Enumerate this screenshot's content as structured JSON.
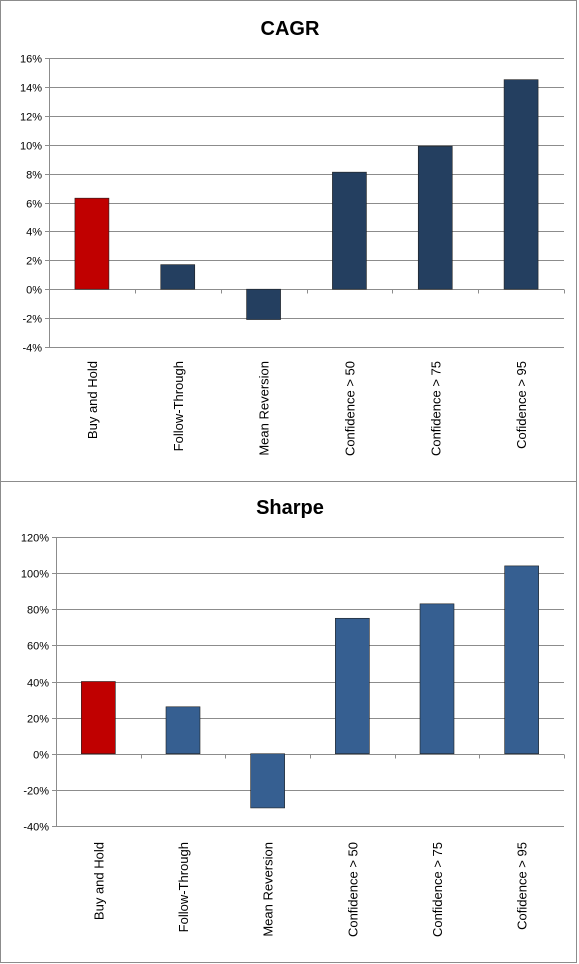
{
  "chart_data": [
    {
      "type": "bar",
      "title": "CAGR",
      "categories": [
        "Buy and Hold",
        "Follow-Through",
        "Mean Reversion",
        "Confidence > 50",
        "Confidence > 75",
        "Cofidence > 95"
      ],
      "values": [
        6.3,
        1.7,
        -2.1,
        8.1,
        9.9,
        14.5
      ],
      "ylim": [
        -4,
        16
      ],
      "yticks": [
        -4,
        -2,
        0,
        2,
        4,
        6,
        8,
        10,
        12,
        14,
        16
      ],
      "ytick_labels": [
        "-4%",
        "-2%",
        "0%",
        "2%",
        "4%",
        "6%",
        "8%",
        "10%",
        "12%",
        "14%",
        "16%"
      ],
      "grid": true,
      "colors": [
        "#c00000",
        "#243f60",
        "#243f60",
        "#243f60",
        "#243f60",
        "#243f60"
      ]
    },
    {
      "type": "bar",
      "title": "Sharpe",
      "categories": [
        "Buy and Hold",
        "Follow-Through",
        "Mean Reversion",
        "Confidence > 50",
        "Confidence > 75",
        "Cofidence > 95"
      ],
      "values": [
        40,
        26,
        -30,
        75,
        83,
        104
      ],
      "ylim": [
        -40,
        120
      ],
      "yticks": [
        -40,
        -20,
        0,
        20,
        40,
        60,
        80,
        100,
        120
      ],
      "ytick_labels": [
        "-40%",
        "-20%",
        "0%",
        "20%",
        "40%",
        "60%",
        "80%",
        "100%",
        "120%"
      ],
      "grid": true,
      "colors": [
        "#c00000",
        "#365f91",
        "#365f91",
        "#365f91",
        "#365f91",
        "#365f91"
      ]
    }
  ]
}
